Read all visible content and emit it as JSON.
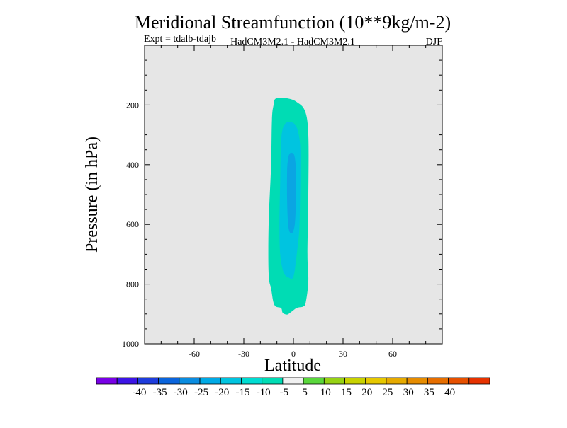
{
  "chart_data": {
    "type": "contour",
    "title": "Meridional Streamfunction (10**9kg/m-2)",
    "subtitle_left": "Expt = tdalb-tdajb",
    "subtitle_center": "HadCM3M2.1 - HadCM3M2.1",
    "subtitle_right": "DJF",
    "xlabel": "Latitude",
    "ylabel": "Pressure (in hPa)",
    "xlim": [
      -90,
      90
    ],
    "ylim": [
      1000,
      0
    ],
    "x_ticks": [
      -60,
      -30,
      0,
      30,
      60
    ],
    "x_tick_labels": [
      "-60",
      "-30",
      "0",
      "30",
      "60"
    ],
    "y_ticks": [
      200,
      400,
      600,
      800,
      1000
    ],
    "y_tick_labels": [
      "200",
      "400",
      "600",
      "800",
      "1000"
    ],
    "background_color": "#e6e6e6",
    "contour_regions": [
      {
        "level_range": [
          -10,
          -5
        ],
        "color": "#00dcb4",
        "outline": [
          [
            -10.5,
            178
          ],
          [
            -3.5,
            178
          ],
          [
            2,
            190
          ],
          [
            7,
            220
          ],
          [
            9,
            300
          ],
          [
            9,
            500
          ],
          [
            8.5,
            700
          ],
          [
            9,
            790
          ],
          [
            7.5,
            860
          ],
          [
            6,
            875
          ],
          [
            2,
            880
          ],
          [
            -2,
            896
          ],
          [
            -4,
            902
          ],
          [
            -6.5,
            896
          ],
          [
            -7.5,
            880
          ],
          [
            -11.5,
            870
          ],
          [
            -13.5,
            815
          ],
          [
            -15,
            765
          ],
          [
            -15,
            600
          ],
          [
            -13.5,
            400
          ],
          [
            -13,
            250
          ],
          [
            -12,
            200
          ]
        ]
      },
      {
        "level_range": [
          -15,
          -10
        ],
        "color": "#00c4e0",
        "outline": [
          [
            -4.5,
            260
          ],
          [
            -1,
            258
          ],
          [
            2,
            275
          ],
          [
            4,
            330
          ],
          [
            4.2,
            420
          ],
          [
            4,
            520
          ],
          [
            3.5,
            620
          ],
          [
            2,
            700
          ],
          [
            0,
            775
          ],
          [
            -3,
            778
          ],
          [
            -6,
            760
          ],
          [
            -8,
            700
          ],
          [
            -8.5,
            600
          ],
          [
            -8,
            460
          ],
          [
            -7.5,
            330
          ],
          [
            -6.5,
            280
          ]
        ]
      },
      {
        "level_range": [
          -20,
          -15
        ],
        "color": "#0aa5e3",
        "outline": [
          [
            -2.5,
            365
          ],
          [
            -1.2,
            360
          ],
          [
            0.6,
            370
          ],
          [
            1.5,
            420
          ],
          [
            1.5,
            520
          ],
          [
            0.8,
            600
          ],
          [
            -1,
            630
          ],
          [
            -3,
            610
          ],
          [
            -3.8,
            520
          ],
          [
            -3.8,
            420
          ],
          [
            -3.2,
            380
          ]
        ]
      }
    ],
    "colorbar": {
      "colors": [
        "#7800e6",
        "#3c14e6",
        "#1e3cdc",
        "#0a64dc",
        "#0a8ce0",
        "#00aae6",
        "#00c4e0",
        "#00dcd2",
        "#00dcb4",
        "#f0f0f0",
        "#5ad73c",
        "#96d214",
        "#c8d200",
        "#e6c800",
        "#e6aa00",
        "#e68c00",
        "#e66e00",
        "#e65000",
        "#e63200"
      ],
      "labels": [
        "-40",
        "-35",
        "-30",
        "-25",
        "-20",
        "-15",
        "-10",
        "-5",
        "5",
        "10",
        "15",
        "20",
        "25",
        "30",
        "35",
        "40"
      ]
    }
  }
}
